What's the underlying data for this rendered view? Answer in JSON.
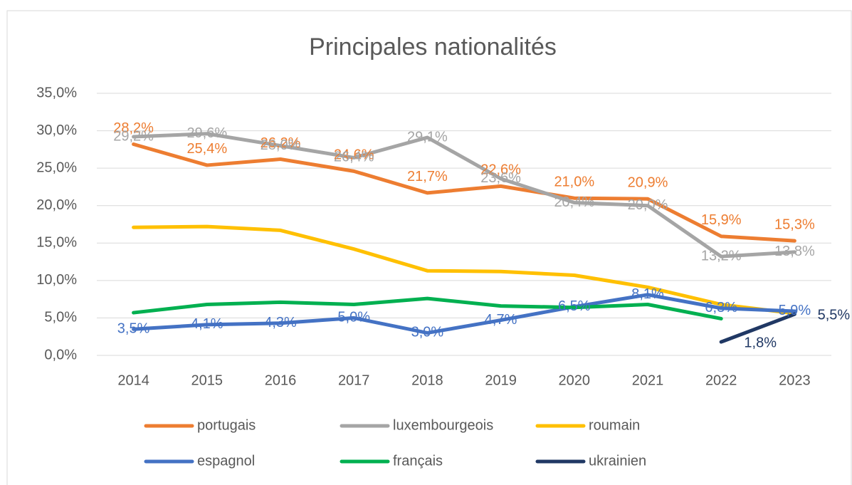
{
  "chart_data": {
    "type": "line",
    "title": "Principales nationalités",
    "categories": [
      "2014",
      "2015",
      "2016",
      "2017",
      "2018",
      "2019",
      "2020",
      "2021",
      "2022",
      "2023"
    ],
    "ylim": [
      0,
      35
    ],
    "yticks": [
      {
        "value": 0,
        "label": "0,0%"
      },
      {
        "value": 5,
        "label": "5,0%"
      },
      {
        "value": 10,
        "label": "10,0%"
      },
      {
        "value": 15,
        "label": "15,0%"
      },
      {
        "value": 20,
        "label": "20,0%"
      },
      {
        "value": 25,
        "label": "25,0%"
      },
      {
        "value": 30,
        "label": "30,0%"
      },
      {
        "value": 35,
        "label": "35,0%"
      }
    ],
    "grid": true,
    "legend": "bottom",
    "series": [
      {
        "name": "portugais",
        "color": "#ED7D31",
        "values": [
          28.2,
          25.4,
          26.2,
          24.6,
          21.7,
          22.6,
          21.0,
          20.9,
          15.9,
          15.3
        ],
        "value_labels": [
          "28,2%",
          "25,4%",
          "26,2%",
          "24,6%",
          "21,7%",
          "22,6%",
          "21,0%",
          "20,9%",
          "15,9%",
          "15,3%"
        ]
      },
      {
        "name": "luxembourgeois",
        "color": "#A5A5A5",
        "values": [
          29.2,
          29.6,
          28.0,
          26.4,
          29.1,
          23.6,
          20.4,
          20.0,
          13.2,
          13.8
        ],
        "value_labels": [
          "29,2%",
          "29,6%",
          "28,0%",
          "26,4%",
          "29,1%",
          "23,6%",
          "20,4%",
          "20,0%",
          "13,2%",
          "13,8%"
        ]
      },
      {
        "name": "roumain",
        "color": "#FFC000",
        "values": [
          17.1,
          17.2,
          16.7,
          14.2,
          11.3,
          11.2,
          10.7,
          9.1,
          6.8,
          5.6
        ]
      },
      {
        "name": "espagnol",
        "color": "#4472C4",
        "values": [
          3.5,
          4.1,
          4.3,
          5.0,
          3.0,
          4.7,
          6.5,
          8.1,
          6.3,
          5.9
        ],
        "value_labels": [
          "3,5%",
          "4,1%",
          "4,3%",
          "5,0%",
          "3,0%",
          "4,7%",
          "6,5%",
          "8,1%",
          "6,3%",
          "5,9%"
        ]
      },
      {
        "name": "français",
        "color": "#00B050",
        "values": [
          5.7,
          6.8,
          7.1,
          6.8,
          7.6,
          6.6,
          6.4,
          6.8,
          4.9,
          null
        ]
      },
      {
        "name": "ukrainien",
        "color": "#203864",
        "values": [
          null,
          null,
          null,
          null,
          null,
          null,
          null,
          null,
          1.8,
          5.5
        ],
        "value_labels": [
          null,
          null,
          null,
          null,
          null,
          null,
          null,
          null,
          "1,8%",
          "5,5%"
        ]
      }
    ]
  }
}
